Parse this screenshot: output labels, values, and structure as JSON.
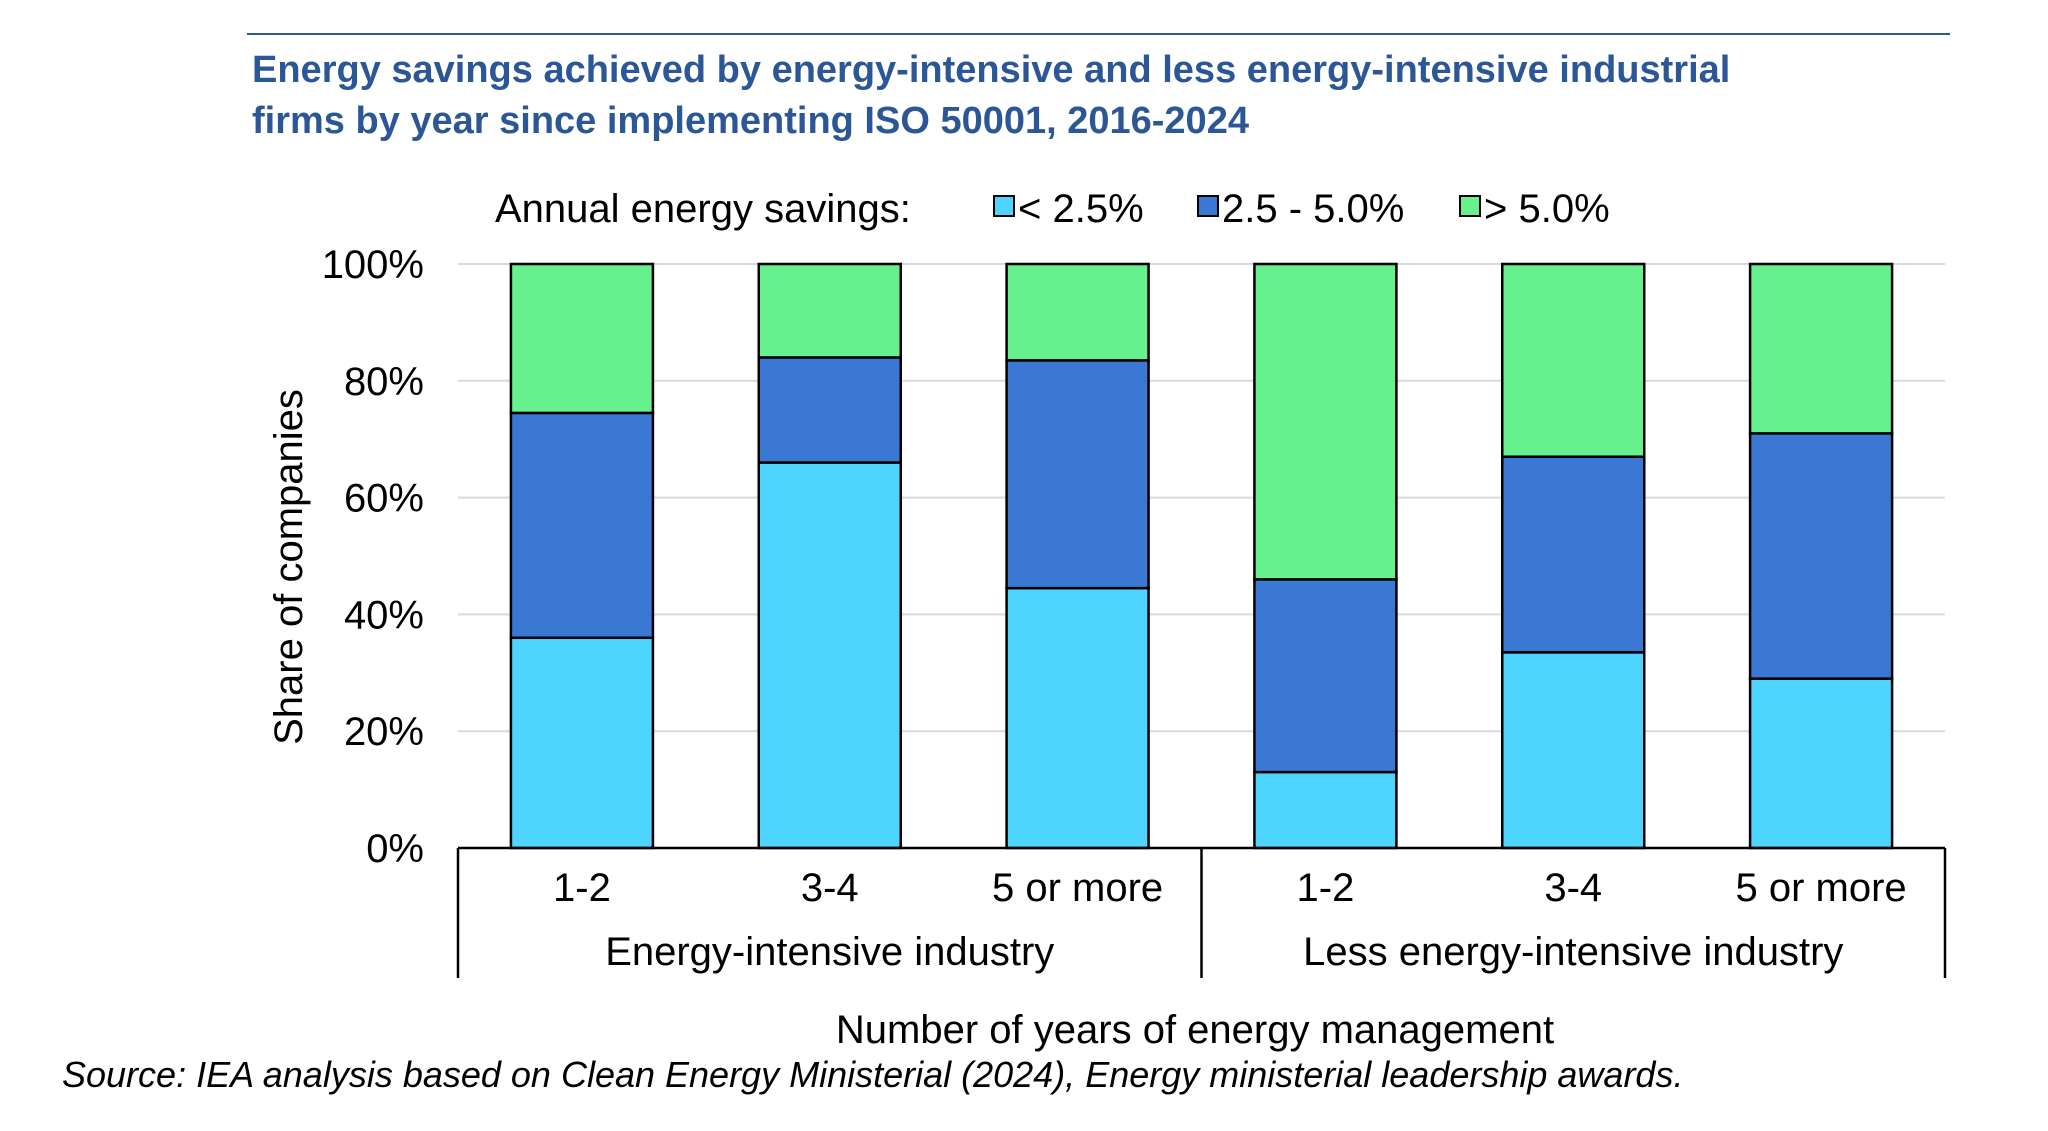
{
  "chart_data": {
    "type": "bar",
    "stacked": true,
    "title_lines": [
      "Energy savings achieved by energy-intensive and less energy-intensive industrial",
      "firms by year since implementing ISO 50001, 2016-2024"
    ],
    "legend": {
      "title": "Annual energy savings:",
      "placement": "top"
    },
    "categories": [
      "1-2",
      "3-4",
      "5 or more",
      "1-2",
      "3-4",
      "5 or more"
    ],
    "groups": [
      {
        "label": "Energy-intensive industry",
        "start": 0,
        "end": 2
      },
      {
        "label": "Less energy-intensive industry",
        "start": 3,
        "end": 5
      }
    ],
    "series": [
      {
        "name": "< 2.5%",
        "color": "#4dd4ff",
        "values": [
          36,
          66,
          44.5,
          13,
          33.5,
          29
        ]
      },
      {
        "name": "2.5 - 5.0%",
        "color": "#3b78d4",
        "values": [
          38.5,
          18,
          39,
          33,
          33.5,
          42
        ]
      },
      {
        "name": "> 5.0%",
        "color": "#66f08e",
        "values": [
          25.5,
          16,
          16.5,
          54,
          33,
          29
        ]
      }
    ],
    "ylabel": "Share of companies",
    "xlabel": "Number of years of energy management",
    "ylim": [
      0,
      100
    ],
    "yticks": [
      "0%",
      "20%",
      "40%",
      "60%",
      "80%",
      "100%"
    ],
    "grid": true
  },
  "source_note": "Source: IEA analysis based on Clean Energy Ministerial (2024), Energy ministerial leadership awards."
}
